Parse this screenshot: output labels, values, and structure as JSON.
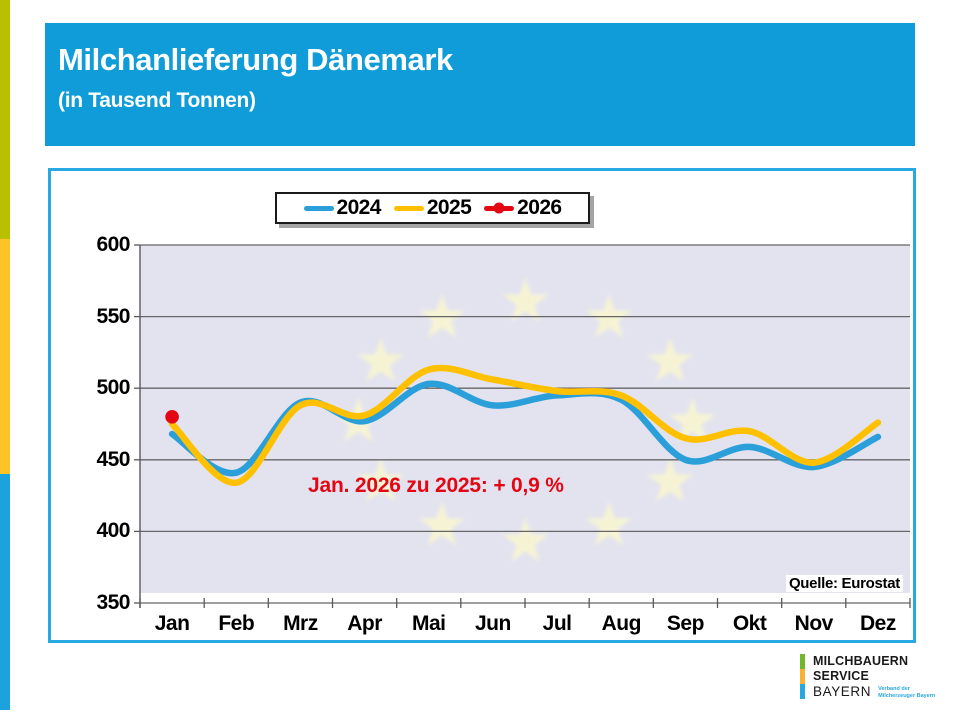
{
  "header": {
    "title": "Milchanlieferung Dänemark",
    "subtitle": "(in Tausend Tonnen)"
  },
  "colors": {
    "header_bg": "#0F9CD8",
    "card_border": "#29A9E2",
    "plot_bg": "#E3E3EF",
    "gridline": "#666666",
    "axis_line": "#595959",
    "star": "#F8F5D2",
    "accent_red": "#E30613",
    "logo_blue": "#29A8DF"
  },
  "side_stripe": {
    "segments": [
      {
        "name": "olive",
        "color": "#B9C000"
      },
      {
        "name": "orange",
        "color": "#FFC32A"
      },
      {
        "name": "blue",
        "color": "#1CA2DC"
      }
    ]
  },
  "chart_data": {
    "type": "line",
    "title": "Milchanlieferung Dänemark",
    "subtitle": "(in Tausend Tonnen)",
    "categories": [
      "Jan",
      "Feb",
      "Mrz",
      "Apr",
      "Mai",
      "Jun",
      "Jul",
      "Aug",
      "Sep",
      "Okt",
      "Nov",
      "Dez"
    ],
    "series": [
      {
        "name": "2024",
        "color": "#2B9FD9",
        "values": [
          468,
          441,
          490,
          477,
          503,
          488,
          495,
          492,
          450,
          459,
          445,
          466
        ]
      },
      {
        "name": "2025",
        "color": "#FFC000",
        "values": [
          475,
          434,
          488,
          481,
          513,
          506,
          498,
          495,
          465,
          470,
          448,
          476
        ]
      },
      {
        "name": "2026",
        "color": "#E30613",
        "marker": "circle",
        "values": [
          480
        ]
      }
    ],
    "ylim": [
      350,
      600
    ],
    "yticks": [
      600,
      550,
      500,
      450,
      400,
      350
    ],
    "grid": "horizontal",
    "legend_position": "top-center",
    "watermark": "eu-stars-circle",
    "annotation": "Jan. 2026 zu 2025: + 0,9 %",
    "source": "Quelle: Eurostat"
  },
  "logo": {
    "line1": "MILCHBAUERN",
    "line2": "SERVICE",
    "line3": "BAYERN",
    "sub1": "Verband der",
    "sub2": "Milcherzeuger Bayern",
    "bar_colors": [
      "#72B629",
      "#F9B233",
      "#29A8DF"
    ]
  }
}
